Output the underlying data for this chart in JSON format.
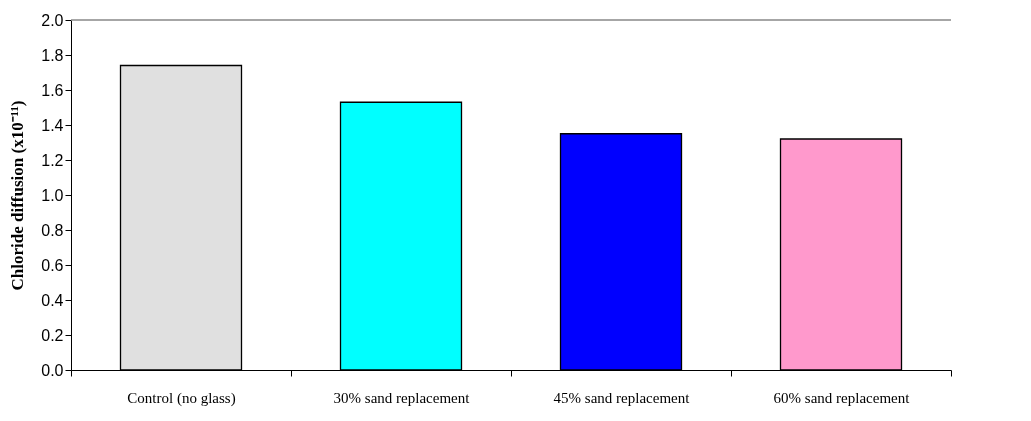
{
  "chart_data": {
    "type": "bar",
    "ylabel": "Chloride diffusion   (x10⁻¹¹)",
    "categories": [
      "Control (no glass)",
      "30% sand replacement",
      "45% sand replacement",
      "60% sand replacement"
    ],
    "values": [
      1.74,
      1.53,
      1.35,
      1.32
    ],
    "colors": [
      "#e0e0e0",
      "#00ffff",
      "#0000ff",
      "#ff99cc"
    ],
    "ylim": [
      0,
      2.0
    ],
    "yticks": [
      {
        "value": 0,
        "label": "0.0"
      },
      {
        "value": 0.2,
        "label": "0.2"
      },
      {
        "value": 0.4,
        "label": "0.4"
      },
      {
        "value": 0.6,
        "label": "0.6"
      },
      {
        "value": 0.8,
        "label": "0.8"
      },
      {
        "value": 1.0,
        "label": "1.0"
      },
      {
        "value": 1.2,
        "label": "1.2"
      },
      {
        "value": 1.4,
        "label": "1.4"
      },
      {
        "value": 1.6,
        "label": "1.6"
      },
      {
        "value": 1.8,
        "label": "1.8"
      },
      {
        "value": 2.0,
        "label": "2.0"
      }
    ],
    "grid": false
  }
}
